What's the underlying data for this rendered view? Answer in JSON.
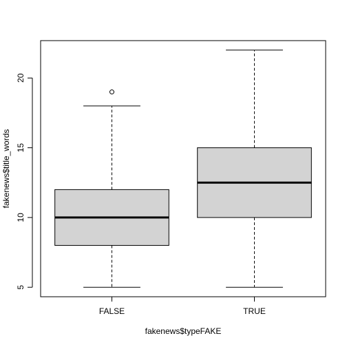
{
  "chart_data": {
    "type": "box",
    "title": "",
    "xlabel": "fakenews$typeFAKE",
    "ylabel": "fakenews$title_words",
    "categories": [
      "FALSE",
      "TRUE"
    ],
    "boxes": [
      {
        "category": "FALSE",
        "min": 5,
        "q1": 8,
        "median": 10,
        "q3": 12,
        "max": 18,
        "outliers": [
          19
        ]
      },
      {
        "category": "TRUE",
        "min": 5,
        "q1": 10,
        "median": 12.5,
        "q3": 15,
        "max": 22,
        "outliers": []
      }
    ],
    "ylim": [
      4.32,
      22.68
    ],
    "yticks": [
      5,
      10,
      15,
      20
    ],
    "grid": false,
    "box_fill": "#d3d3d3",
    "line_color": "#000000"
  }
}
